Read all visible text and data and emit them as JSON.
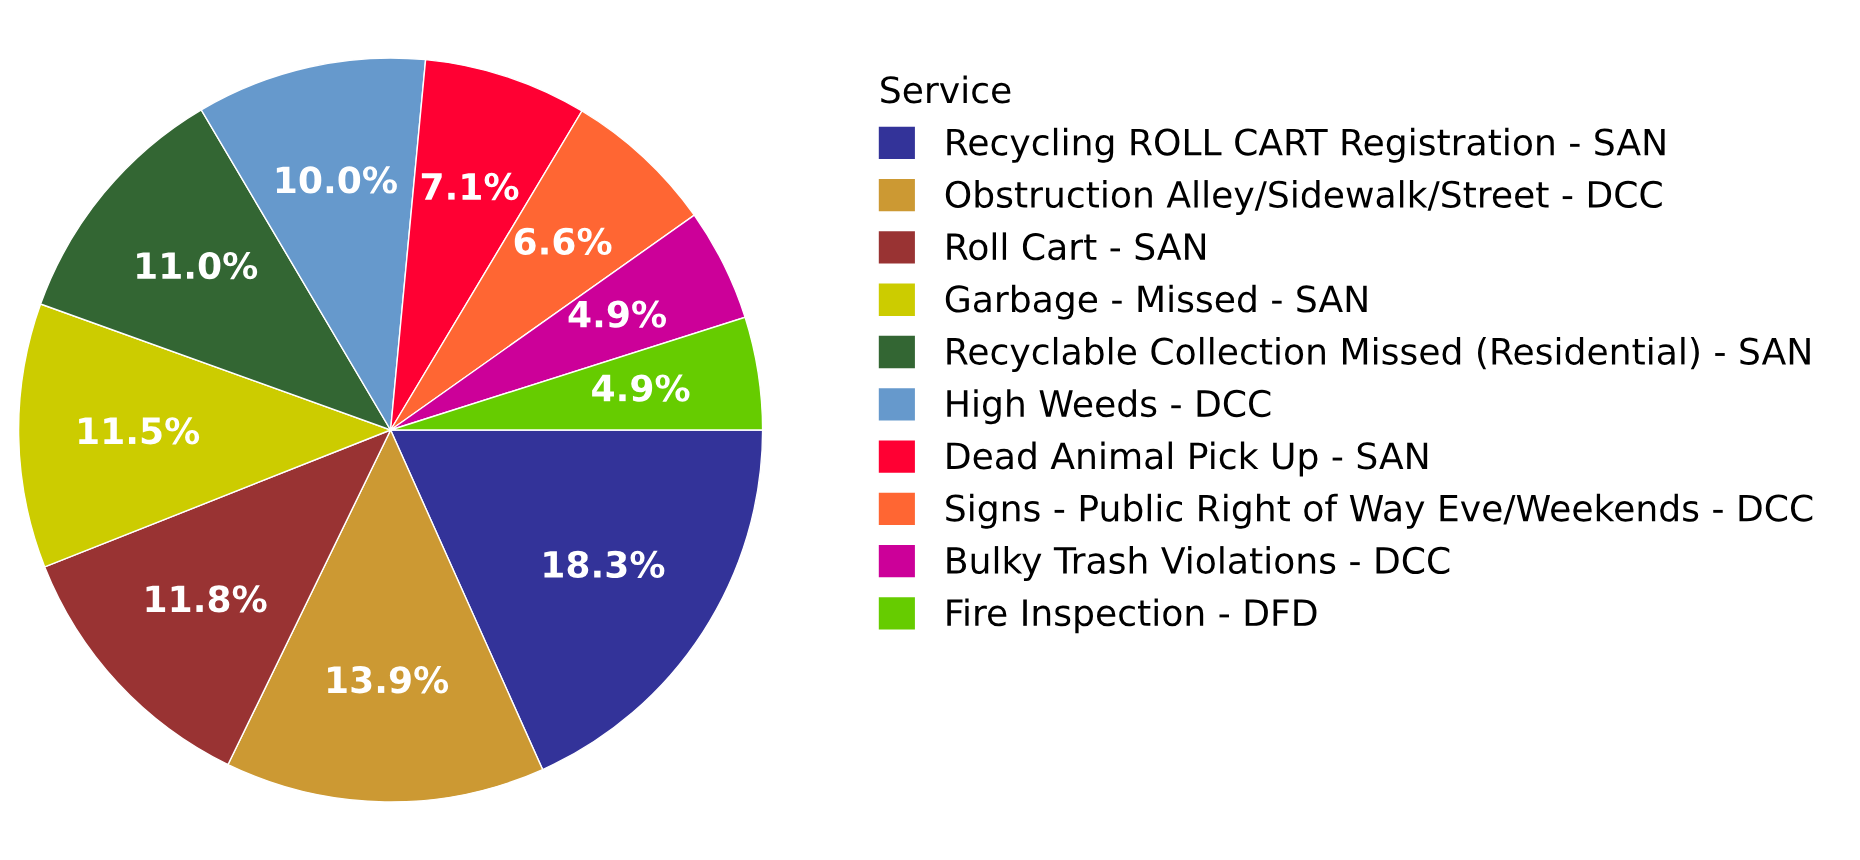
{
  "chart_data": {
    "type": "pie",
    "legend_title": "Service",
    "legend": "right",
    "data_labels": true,
    "categories": [
      "Recycling ROLL CART Registration - SAN",
      "Obstruction Alley/Sidewalk/Street - DCC",
      "Roll Cart - SAN",
      "Garbage - Missed - SAN",
      "Recyclable Collection Missed (Residential) - SAN",
      "High Weeds - DCC",
      "Dead Animal Pick Up - SAN",
      "Signs - Public Right of Way Eve/Weekends - DCC",
      "Bulky Trash Violations - DCC",
      "Fire Inspection - DFD"
    ],
    "values": [
      18.3,
      13.9,
      11.8,
      11.5,
      11.0,
      10.0,
      7.1,
      6.6,
      4.9,
      4.9
    ],
    "value_labels": [
      "18.3%",
      "13.9%",
      "11.8%",
      "11.5%",
      "11.0%",
      "10.0%",
      "7.1%",
      "6.6%",
      "4.9%",
      "4.9%"
    ],
    "colors": [
      "#333399",
      "#cc9933",
      "#993333",
      "#cccc00",
      "#336633",
      "#6699cc",
      "#ff0033",
      "#ff6633",
      "#cc0099",
      "#66cc00"
    ]
  }
}
